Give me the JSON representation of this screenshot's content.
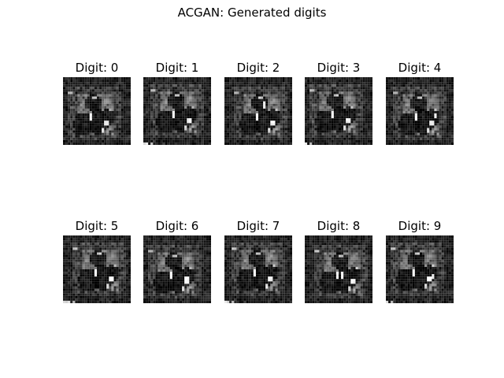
{
  "figure": {
    "title": "ACGAN: Generated digits",
    "panels": [
      {
        "label": "Digit: 0"
      },
      {
        "label": "Digit: 1"
      },
      {
        "label": "Digit: 2"
      },
      {
        "label": "Digit: 3"
      },
      {
        "label": "Digit: 4"
      },
      {
        "label": "Digit: 5"
      },
      {
        "label": "Digit: 6"
      },
      {
        "label": "Digit: 7"
      },
      {
        "label": "Digit: 8"
      },
      {
        "label": "Digit: 9"
      }
    ]
  }
}
